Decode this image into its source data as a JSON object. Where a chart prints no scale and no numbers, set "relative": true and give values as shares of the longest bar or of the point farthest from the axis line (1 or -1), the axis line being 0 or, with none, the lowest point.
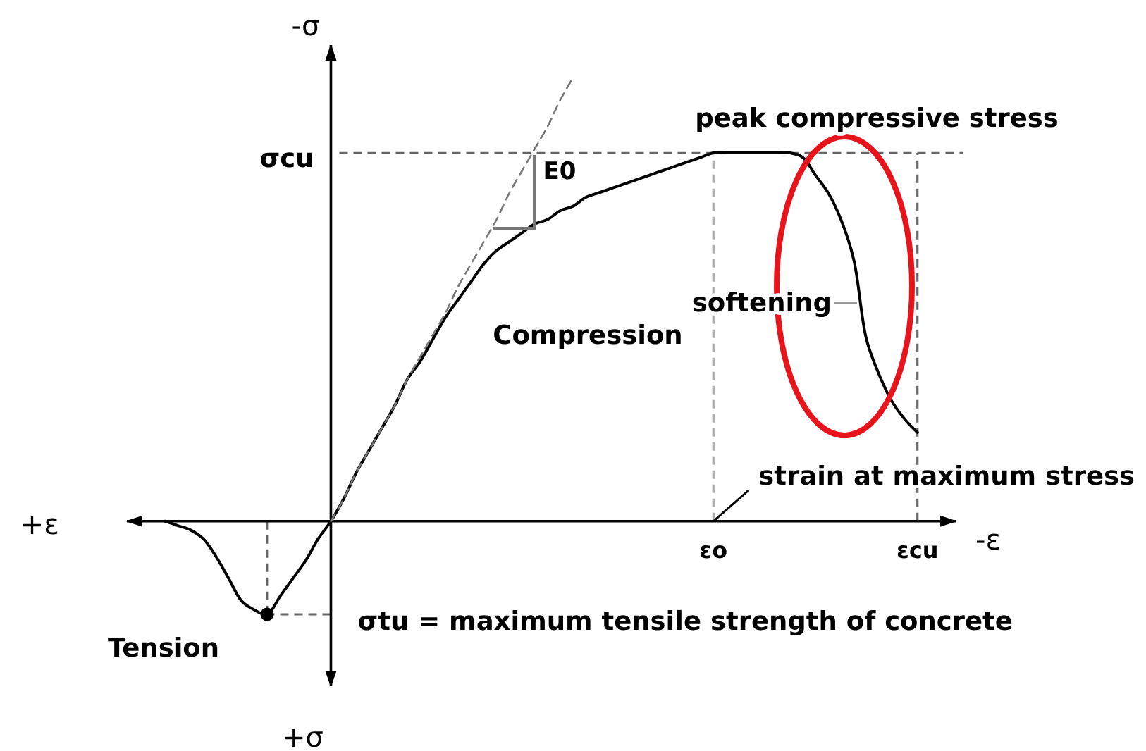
{
  "chart_data": {
    "type": "line",
    "xlabel": "-ε",
    "ylabel": "-σ",
    "relative": true,
    "categories": [
      null,
      null,
      null,
      null,
      null,
      null,
      null,
      null,
      null,
      null,
      null,
      null,
      null,
      null,
      null,
      null,
      null,
      null,
      null,
      null,
      null,
      null,
      null,
      null,
      null,
      null,
      null,
      null,
      null,
      null,
      null,
      null,
      null,
      null,
      null,
      null,
      null,
      null,
      null,
      null,
      null,
      null,
      null,
      "εo",
      null,
      null,
      null,
      null,
      null,
      null,
      null,
      null,
      null,
      null,
      null,
      null,
      null,
      null,
      null,
      "εcu"
    ],
    "series": [
      {
        "color": "#000000",
        "values": [
          0,
          -0.01,
          -0.02,
          -0.04,
          -0.08,
          -0.13,
          -0.18,
          -0.2,
          -0.21,
          -0.17,
          -0.13,
          -0.09,
          -0.04,
          0,
          0.05,
          0.11,
          0.16,
          0.21,
          0.26,
          0.32,
          0.36,
          0.41,
          0.46,
          0.5,
          0.54,
          0.58,
          0.61,
          0.63,
          0.65,
          0.67,
          0.68,
          0.7,
          0.71,
          0.73,
          0.74,
          0.75,
          0.76,
          0.77,
          0.78,
          0.79,
          0.8,
          0.81,
          0.82,
          0.83,
          0.83,
          0.83,
          0.83,
          0.83,
          0.83,
          0.83,
          0.82,
          0.78,
          0.74,
          0.68,
          0.59,
          0.41,
          0.33,
          0.27,
          0.23,
          0.2
        ]
      },
      {
        "color": "#777777",
        "line_style": "dashed",
        "values": [
          null,
          null,
          null,
          null,
          null,
          null,
          null,
          null,
          null,
          null,
          null,
          null,
          null,
          0,
          0.05,
          0.11,
          0.16,
          0.21,
          0.26,
          0.32,
          0.37,
          0.42,
          0.47,
          0.53,
          0.58,
          0.63,
          0.68,
          0.74,
          0.79,
          0.84,
          0.89,
          0.95,
          1,
          null,
          null,
          null,
          null,
          null,
          null,
          null,
          null,
          null,
          null,
          null,
          null,
          null,
          null,
          null,
          null,
          null,
          null,
          null,
          null,
          null,
          null,
          null,
          null,
          null,
          null,
          null
        ]
      },
      {
        "type": "lollipop",
        "color": "#000000",
        "marker": "circle",
        "line_style": "dashed",
        "values": [
          null,
          null,
          null,
          null,
          null,
          null,
          null,
          null,
          -0.21,
          null,
          null,
          null,
          null,
          null,
          null,
          null,
          null,
          null,
          null,
          null,
          null,
          null,
          null,
          null,
          null,
          null,
          null,
          null,
          null,
          null,
          null,
          null,
          null,
          null,
          null,
          null,
          null,
          null,
          null,
          null,
          null,
          null,
          null,
          null,
          null,
          null,
          null,
          null,
          null,
          null,
          null,
          null,
          null,
          null,
          null,
          null,
          null,
          null,
          null,
          null
        ]
      }
    ],
    "ref_lines": [
      {
        "axis": "y",
        "value": 0.83,
        "label": "σcu",
        "color": "#666666",
        "line_style": "dashed"
      },
      {
        "axis": "y",
        "value": -0.21,
        "label": "σtu = maximum tensile strength of concrete",
        "color": "#666666",
        "line_style": "dashed"
      },
      {
        "axis": "x",
        "value": "εo",
        "color": "#aaaaaa",
        "line_style": "dashed"
      },
      {
        "axis": "x",
        "value": "εcu",
        "color": "#666666",
        "line_style": "dashed"
      }
    ],
    "annotations": [
      "peak compressive stress",
      "E0",
      "Compression",
      "softening",
      {
        "text": "strain at maximum stress",
        "x": "εo",
        "y": 0
      },
      "Tension",
      "+ε",
      "+σ"
    ]
  }
}
